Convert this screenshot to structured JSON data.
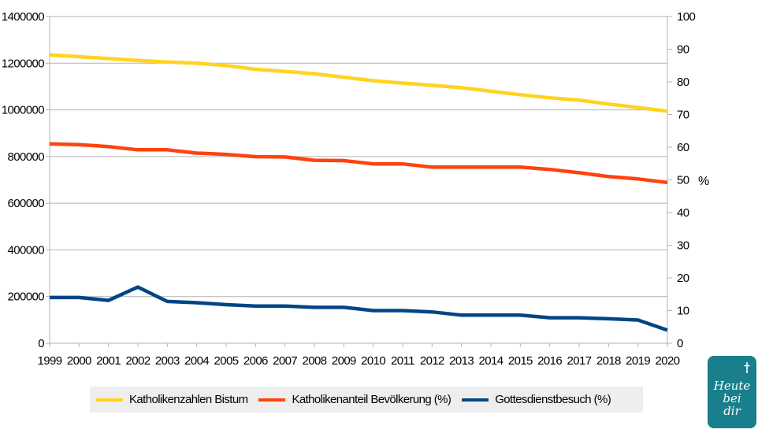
{
  "chart_data": {
    "type": "line",
    "x": [
      "1999",
      "2000",
      "2001",
      "2002",
      "2003",
      "2004",
      "2005",
      "2006",
      "2007",
      "2008",
      "2009",
      "2010",
      "2011",
      "2012",
      "2013",
      "2014",
      "2015",
      "2016",
      "2017",
      "2018",
      "2019",
      "2020"
    ],
    "y_left": {
      "ticks": [
        "0",
        "200000",
        "400000",
        "600000",
        "800000",
        "1000000",
        "1200000",
        "1400000"
      ],
      "range": [
        0,
        1400000
      ]
    },
    "y_right": {
      "ticks": [
        "0",
        "10",
        "20",
        "30",
        "40",
        "50",
        "60",
        "70",
        "80",
        "90",
        "100"
      ],
      "range": [
        0,
        100
      ],
      "label": "%"
    },
    "series": [
      {
        "name": "Katholikenzahlen Bistum",
        "axis": "left",
        "color": "#ffd320",
        "values": [
          1236000,
          1228000,
          1220000,
          1212000,
          1205000,
          1200000,
          1190000,
          1174000,
          1165000,
          1155000,
          1140000,
          1125000,
          1115000,
          1105000,
          1095000,
          1080000,
          1065000,
          1052000,
          1042000,
          1025000,
          1010000,
          995000
        ]
      },
      {
        "name": "Katholikenanteil Bevölkerung (%)",
        "axis": "right",
        "color": "#ff420e",
        "values": [
          61.0,
          60.8,
          60.2,
          59.2,
          59.2,
          58.2,
          57.8,
          57.1,
          57.0,
          56.0,
          55.9,
          54.9,
          54.9,
          53.9,
          53.9,
          53.9,
          53.9,
          53.2,
          52.2,
          51.0,
          50.3,
          49.2
        ]
      },
      {
        "name": "Gottesdienstbesuch (%)",
        "axis": "right",
        "color": "#004586",
        "values": [
          14.0,
          14.0,
          13.1,
          17.2,
          12.8,
          12.4,
          11.8,
          11.4,
          11.4,
          11.0,
          11.0,
          10.0,
          10.0,
          9.6,
          8.6,
          8.6,
          8.6,
          7.8,
          7.8,
          7.5,
          7.1,
          4.0
        ]
      }
    ],
    "grid": true,
    "legend_position": "bottom"
  },
  "colors": {
    "grid": "#b3b3b3",
    "legend_bg": "#eeeeee",
    "logo_bg": "#1a7f8c"
  },
  "logo": {
    "text": "Heute\nbei\ndir",
    "icon": "cross-icon"
  }
}
